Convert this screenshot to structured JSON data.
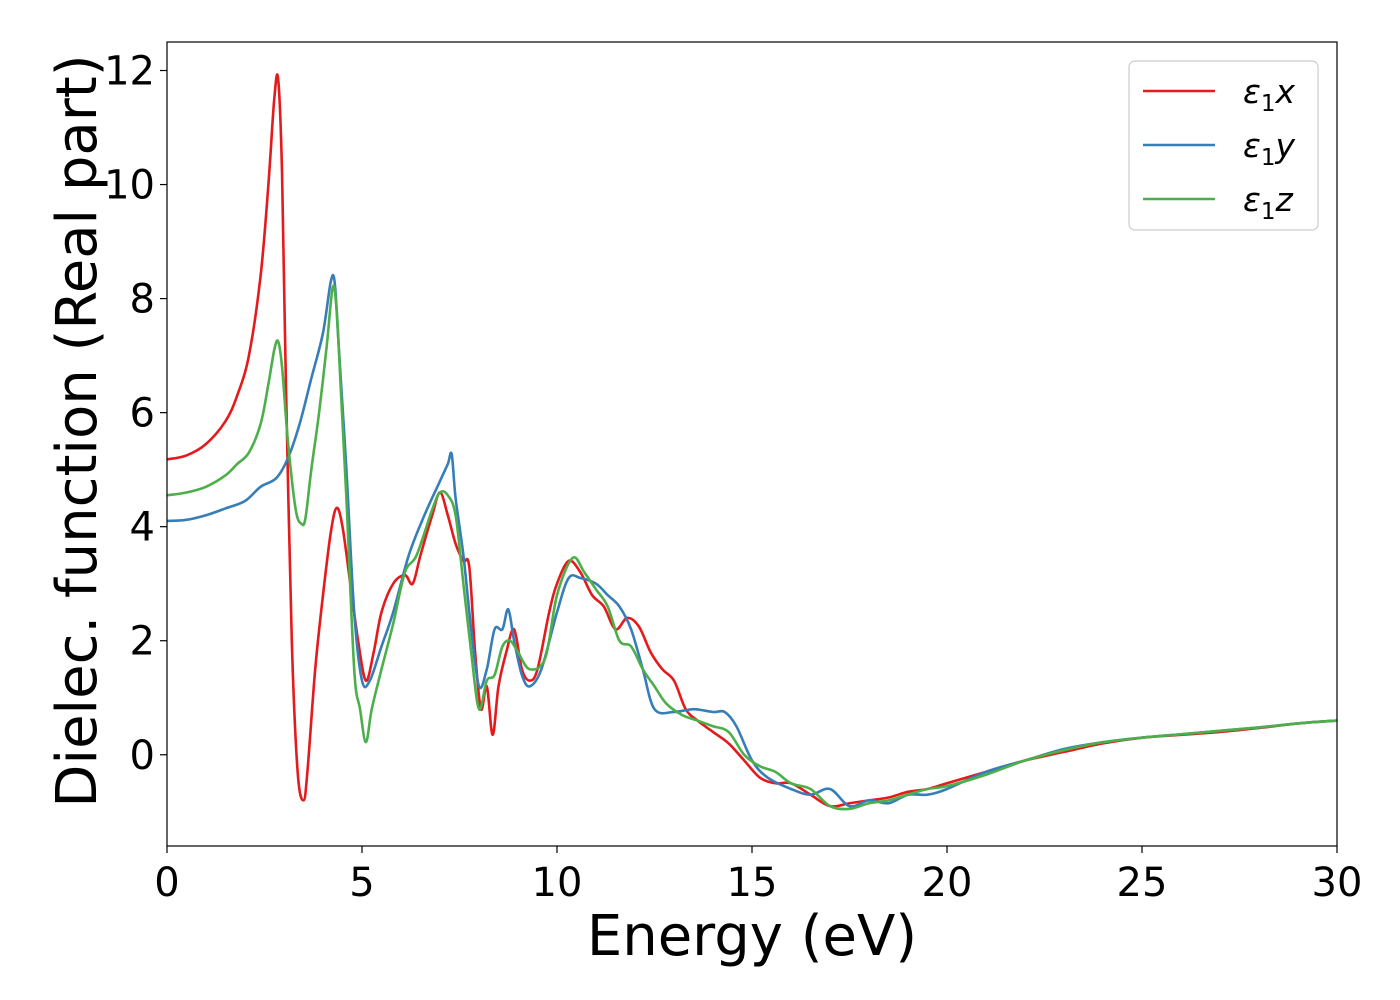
{
  "chart_data": {
    "type": "line",
    "title": "",
    "xlabel": "Energy (eV)",
    "ylabel": "Dielec. function (Real part)",
    "xlim": [
      0,
      30
    ],
    "ylim": [
      -1.6,
      12.5
    ],
    "xticks": [
      0,
      5,
      10,
      15,
      20,
      25,
      30
    ],
    "yticks": [
      0,
      2,
      4,
      6,
      8,
      10,
      12
    ],
    "xtick_labels": [
      "0",
      "5",
      "10",
      "15",
      "20",
      "25",
      "30"
    ],
    "ytick_labels": [
      "0",
      "2",
      "4",
      "6",
      "8",
      "10",
      "12"
    ],
    "grid": false,
    "legend_position": "top-right",
    "series": [
      {
        "name": "ε1x",
        "name_main": "ε",
        "name_sub": "1",
        "name_suffix": "x",
        "color": "#e41a1c",
        "x": [
          0,
          0.5,
          1.0,
          1.5,
          1.8,
          2.1,
          2.4,
          2.6,
          2.75,
          2.85,
          2.95,
          3.05,
          3.2,
          3.35,
          3.5,
          3.6,
          3.8,
          4.0,
          4.2,
          4.35,
          4.5,
          4.7,
          4.9,
          5.1,
          5.3,
          5.5,
          5.8,
          6.1,
          6.3,
          6.5,
          6.8,
          7.0,
          7.2,
          7.4,
          7.6,
          7.75,
          7.9,
          8.05,
          8.2,
          8.35,
          8.5,
          8.7,
          8.9,
          9.1,
          9.3,
          9.5,
          9.8,
          10.0,
          10.3,
          10.6,
          10.9,
          11.2,
          11.5,
          11.8,
          12.1,
          12.4,
          12.7,
          13.0,
          13.3,
          13.6,
          14.0,
          14.4,
          14.8,
          15.2,
          15.6,
          16.0,
          16.5,
          17.0,
          17.5,
          18.0,
          18.5,
          19.0,
          19.5,
          20.0,
          21.0,
          22.0,
          23.0,
          24.0,
          25.0,
          26.0,
          27.0,
          28.0,
          29.0,
          30.0
        ],
        "y": [
          5.18,
          5.25,
          5.45,
          5.85,
          6.3,
          7.0,
          8.4,
          10.0,
          11.5,
          11.85,
          10.2,
          6.5,
          2.0,
          -0.3,
          -0.8,
          -0.3,
          1.5,
          2.8,
          3.9,
          4.33,
          4.0,
          3.0,
          2.0,
          1.3,
          1.8,
          2.5,
          3.0,
          3.15,
          3.0,
          3.5,
          4.2,
          4.6,
          4.2,
          3.7,
          3.4,
          3.3,
          1.8,
          0.8,
          1.2,
          0.35,
          1.2,
          1.8,
          2.2,
          1.5,
          1.3,
          1.5,
          2.5,
          3.0,
          3.4,
          3.2,
          2.8,
          2.6,
          2.2,
          2.4,
          2.25,
          1.8,
          1.5,
          1.3,
          0.8,
          0.6,
          0.4,
          0.2,
          -0.1,
          -0.4,
          -0.5,
          -0.5,
          -0.7,
          -0.9,
          -0.85,
          -0.8,
          -0.75,
          -0.65,
          -0.6,
          -0.5,
          -0.3,
          -0.1,
          0.05,
          0.2,
          0.3,
          0.35,
          0.4,
          0.47,
          0.55,
          0.6
        ]
      },
      {
        "name": "ε1y",
        "name_main": "ε",
        "name_sub": "1",
        "name_suffix": "y",
        "color": "#377eb8",
        "x": [
          0,
          0.5,
          1.0,
          1.5,
          2.0,
          2.4,
          2.8,
          3.1,
          3.4,
          3.7,
          4.0,
          4.2,
          4.3,
          4.4,
          4.6,
          4.8,
          5.0,
          5.2,
          5.5,
          5.8,
          6.2,
          6.6,
          7.0,
          7.2,
          7.3,
          7.4,
          7.6,
          7.8,
          8.0,
          8.2,
          8.4,
          8.6,
          8.75,
          8.9,
          9.1,
          9.3,
          9.6,
          10.0,
          10.3,
          10.6,
          11.0,
          11.3,
          11.6,
          11.9,
          12.2,
          12.5,
          13.0,
          13.5,
          14.0,
          14.3,
          14.6,
          15.0,
          15.4,
          16.0,
          16.5,
          17.0,
          17.5,
          18.0,
          18.5,
          19.0,
          19.5,
          20.0,
          21.0,
          22.0,
          23.0,
          24.0,
          25.0,
          26.0,
          27.0,
          28.0,
          29.0,
          30.0
        ],
        "y": [
          4.1,
          4.12,
          4.2,
          4.32,
          4.45,
          4.7,
          4.85,
          5.2,
          5.8,
          6.6,
          7.4,
          8.3,
          8.28,
          7.2,
          5.0,
          2.5,
          1.3,
          1.3,
          1.9,
          2.5,
          3.5,
          4.2,
          4.8,
          5.1,
          5.27,
          4.5,
          3.5,
          2.2,
          1.2,
          1.5,
          2.2,
          2.2,
          2.55,
          2.0,
          1.4,
          1.2,
          1.5,
          2.5,
          3.1,
          3.1,
          3.0,
          2.8,
          2.6,
          2.2,
          1.5,
          0.8,
          0.75,
          0.8,
          0.75,
          0.75,
          0.5,
          -0.1,
          -0.4,
          -0.6,
          -0.7,
          -0.6,
          -0.9,
          -0.8,
          -0.85,
          -0.7,
          -0.7,
          -0.6,
          -0.3,
          -0.1,
          0.1,
          0.22,
          0.3,
          0.36,
          0.42,
          0.48,
          0.55,
          0.6
        ]
      },
      {
        "name": "ε1z",
        "name_main": "ε",
        "name_sub": "1",
        "name_suffix": "z",
        "color": "#4daf4a",
        "x": [
          0,
          0.5,
          1.0,
          1.5,
          1.8,
          2.1,
          2.4,
          2.6,
          2.75,
          2.85,
          2.95,
          3.1,
          3.3,
          3.45,
          3.55,
          3.7,
          3.9,
          4.1,
          4.25,
          4.35,
          4.45,
          4.6,
          4.8,
          4.95,
          5.1,
          5.25,
          5.5,
          5.8,
          6.1,
          6.4,
          6.8,
          7.0,
          7.2,
          7.4,
          7.6,
          7.8,
          8.0,
          8.2,
          8.4,
          8.6,
          8.8,
          9.0,
          9.3,
          9.7,
          10.0,
          10.4,
          10.7,
          11.0,
          11.3,
          11.6,
          11.9,
          12.2,
          12.5,
          12.8,
          13.2,
          13.6,
          14.0,
          14.4,
          14.8,
          15.2,
          15.6,
          16.0,
          16.5,
          17.0,
          17.5,
          18.0,
          18.5,
          19.0,
          19.5,
          20.0,
          21.0,
          22.0,
          23.0,
          24.0,
          25.0,
          26.0,
          27.0,
          28.0,
          29.0,
          30.0
        ],
        "y": [
          4.55,
          4.6,
          4.7,
          4.9,
          5.1,
          5.3,
          5.8,
          6.5,
          7.1,
          7.25,
          6.8,
          5.5,
          4.3,
          4.05,
          4.15,
          5.0,
          6.0,
          7.2,
          8.2,
          7.8,
          6.5,
          4.5,
          1.5,
          0.8,
          0.22,
          0.8,
          1.5,
          2.3,
          3.2,
          3.5,
          4.3,
          4.6,
          4.55,
          4.2,
          3.0,
          1.8,
          0.8,
          1.3,
          1.4,
          1.9,
          2.0,
          1.8,
          1.5,
          1.7,
          2.8,
          3.45,
          3.2,
          2.9,
          2.6,
          2.0,
          1.9,
          1.5,
          1.2,
          0.9,
          0.7,
          0.6,
          0.5,
          0.4,
          0.0,
          -0.2,
          -0.3,
          -0.5,
          -0.6,
          -0.9,
          -0.95,
          -0.85,
          -0.8,
          -0.7,
          -0.6,
          -0.55,
          -0.35,
          -0.1,
          0.08,
          0.22,
          0.3,
          0.36,
          0.42,
          0.48,
          0.55,
          0.6
        ]
      }
    ]
  }
}
